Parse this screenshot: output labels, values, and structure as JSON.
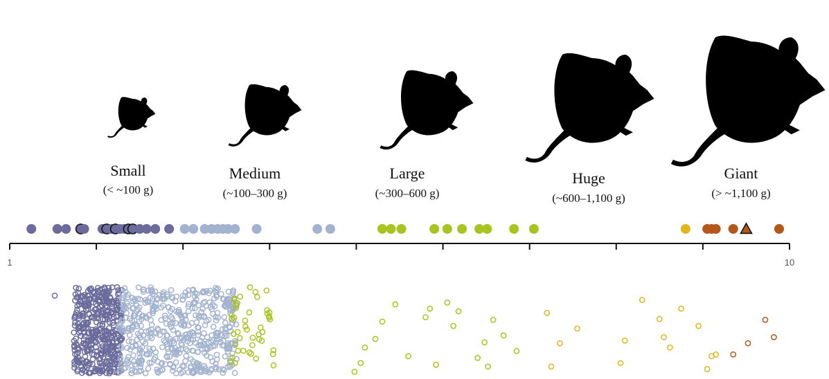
{
  "chart_data": {
    "type": "scatter",
    "x_axis": {
      "scale": "log10-like",
      "range": [
        1,
        10
      ],
      "tick_labels": [
        "1",
        "10"
      ]
    },
    "colors": {
      "small": "#6b6b9c",
      "medium": "#a3b3cf",
      "large": "#a9c420",
      "huge": "#e0b71d",
      "giant": "#b5571b"
    },
    "categories": [
      {
        "key": "small",
        "name": "Small",
        "range": "(< ~100 g)",
        "color": "#6b6b9c"
      },
      {
        "key": "medium",
        "name": "Medium",
        "range": "(~100–300 g)",
        "color": "#a3b3cf"
      },
      {
        "key": "large",
        "name": "Large",
        "range": "(~300–600 g)",
        "color": "#a9c420"
      },
      {
        "key": "huge",
        "name": "Huge",
        "range": "(~600–1,100 g)",
        "color": "#e0b71d"
      },
      {
        "key": "giant",
        "name": "Giant",
        "range": "(> ~1,100 g)",
        "color": "#b5571b"
      }
    ],
    "top_series": [
      {
        "cat": "small",
        "x": 1.25
      },
      {
        "cat": "small",
        "x": 1.55
      },
      {
        "cat": "small",
        "x": 1.65
      },
      {
        "cat": "small",
        "x": 1.82,
        "outlined": true
      },
      {
        "cat": "small",
        "x": 1.86
      },
      {
        "cat": "small",
        "x": 2.07
      },
      {
        "cat": "small",
        "x": 2.12,
        "outlined": true
      },
      {
        "cat": "small",
        "x": 2.17
      },
      {
        "cat": "small",
        "x": 2.22,
        "outlined": true
      },
      {
        "cat": "small",
        "x": 2.27
      },
      {
        "cat": "small",
        "x": 2.32
      },
      {
        "cat": "small",
        "x": 2.37,
        "outlined": true
      },
      {
        "cat": "small",
        "x": 2.42,
        "outlined": true
      },
      {
        "cat": "small",
        "x": 2.5
      },
      {
        "cat": "small",
        "x": 2.58
      },
      {
        "cat": "small",
        "x": 2.68
      },
      {
        "cat": "small",
        "x": 2.84
      },
      {
        "cat": "medium",
        "x": 3.02
      },
      {
        "cat": "medium",
        "x": 3.12
      },
      {
        "cat": "medium",
        "x": 3.25
      },
      {
        "cat": "medium",
        "x": 3.33
      },
      {
        "cat": "medium",
        "x": 3.4
      },
      {
        "cat": "medium",
        "x": 3.46
      },
      {
        "cat": "medium",
        "x": 3.52
      },
      {
        "cat": "medium",
        "x": 3.6
      },
      {
        "cat": "medium",
        "x": 3.85
      },
      {
        "cat": "medium",
        "x": 4.55
      },
      {
        "cat": "medium",
        "x": 4.7
      },
      {
        "cat": "large",
        "x": 5.3
      },
      {
        "cat": "large",
        "x": 5.4
      },
      {
        "cat": "large",
        "x": 5.52
      },
      {
        "cat": "large",
        "x": 5.9
      },
      {
        "cat": "large",
        "x": 6.05
      },
      {
        "cat": "large",
        "x": 6.22
      },
      {
        "cat": "large",
        "x": 6.42
      },
      {
        "cat": "large",
        "x": 6.51
      },
      {
        "cat": "large",
        "x": 6.82
      },
      {
        "cat": "large",
        "x": 7.05
      },
      {
        "cat": "huge",
        "x": 8.8
      },
      {
        "cat": "giant",
        "x": 9.05
      },
      {
        "cat": "giant",
        "x": 9.1
      },
      {
        "cat": "giant",
        "x": 9.15
      },
      {
        "cat": "giant",
        "x": 9.35
      },
      {
        "cat": "giant",
        "x": 9.5,
        "marker": "triangle"
      },
      {
        "cat": "giant",
        "x": 9.88
      }
    ],
    "bottom_sparse_points": [
      {
        "cat": "small",
        "x": 1.52,
        "y": 0.9
      },
      {
        "cat": "small",
        "x": 1.77,
        "y": 0.15
      },
      {
        "cat": "small",
        "x": 1.94,
        "y": 0.28
      },
      {
        "cat": "large",
        "x": 4.98,
        "y": 0.02
      },
      {
        "cat": "large",
        "x": 5.05,
        "y": 0.12
      },
      {
        "cat": "large",
        "x": 5.1,
        "y": 0.3
      },
      {
        "cat": "large",
        "x": 5.22,
        "y": 0.4
      },
      {
        "cat": "large",
        "x": 5.3,
        "y": 0.6
      },
      {
        "cat": "large",
        "x": 5.45,
        "y": 0.8
      },
      {
        "cat": "large",
        "x": 5.6,
        "y": 0.2
      },
      {
        "cat": "large",
        "x": 5.8,
        "y": 0.65
      },
      {
        "cat": "large",
        "x": 5.85,
        "y": 0.75
      },
      {
        "cat": "large",
        "x": 5.92,
        "y": 0.1
      },
      {
        "cat": "large",
        "x": 6.05,
        "y": 0.82
      },
      {
        "cat": "large",
        "x": 6.12,
        "y": 0.55
      },
      {
        "cat": "large",
        "x": 6.18,
        "y": 0.72
      },
      {
        "cat": "large",
        "x": 6.4,
        "y": 0.18
      },
      {
        "cat": "large",
        "x": 6.48,
        "y": 0.36
      },
      {
        "cat": "large",
        "x": 6.52,
        "y": 0.08
      },
      {
        "cat": "large",
        "x": 6.58,
        "y": 0.62
      },
      {
        "cat": "large",
        "x": 6.7,
        "y": 0.44
      },
      {
        "cat": "large",
        "x": 6.85,
        "y": 0.26
      },
      {
        "cat": "huge",
        "x": 7.2,
        "y": 0.7
      },
      {
        "cat": "huge",
        "x": 7.25,
        "y": 0.08
      },
      {
        "cat": "huge",
        "x": 7.35,
        "y": 0.35
      },
      {
        "cat": "huge",
        "x": 7.55,
        "y": 0.52
      },
      {
        "cat": "huge",
        "x": 8.05,
        "y": 0.12
      },
      {
        "cat": "huge",
        "x": 8.1,
        "y": 0.38
      },
      {
        "cat": "huge",
        "x": 8.3,
        "y": 0.85
      },
      {
        "cat": "huge",
        "x": 8.5,
        "y": 0.63
      },
      {
        "cat": "huge",
        "x": 8.55,
        "y": 0.42
      },
      {
        "cat": "huge",
        "x": 8.62,
        "y": 0.3
      },
      {
        "cat": "huge",
        "x": 8.75,
        "y": 0.75
      },
      {
        "cat": "huge",
        "x": 8.95,
        "y": 0.55
      },
      {
        "cat": "huge",
        "x": 9.1,
        "y": 0.2
      },
      {
        "cat": "huge",
        "x": 9.15,
        "y": 0.22
      },
      {
        "cat": "huge",
        "x": 9.05,
        "y": 0.05
      },
      {
        "cat": "giant",
        "x": 9.35,
        "y": 0.22
      },
      {
        "cat": "giant",
        "x": 9.52,
        "y": 0.35
      },
      {
        "cat": "giant",
        "x": 9.72,
        "y": 0.62
      },
      {
        "cat": "giant",
        "x": 9.82,
        "y": 0.42
      }
    ],
    "bottom_dense_clusters": [
      {
        "cat": "small",
        "x_range": [
          1.82,
          2.28
        ],
        "count": 420,
        "x_extent": [
          1.74,
          2.3
        ]
      },
      {
        "cat": "medium",
        "x_range": [
          2.28,
          3.58
        ],
        "count": 520,
        "x_extent": [
          2.26,
          3.62
        ]
      },
      {
        "cat": "large",
        "x_range": [
          3.58,
          4.0
        ],
        "count": 45,
        "x_extent": [
          3.55,
          4.05
        ]
      }
    ]
  }
}
